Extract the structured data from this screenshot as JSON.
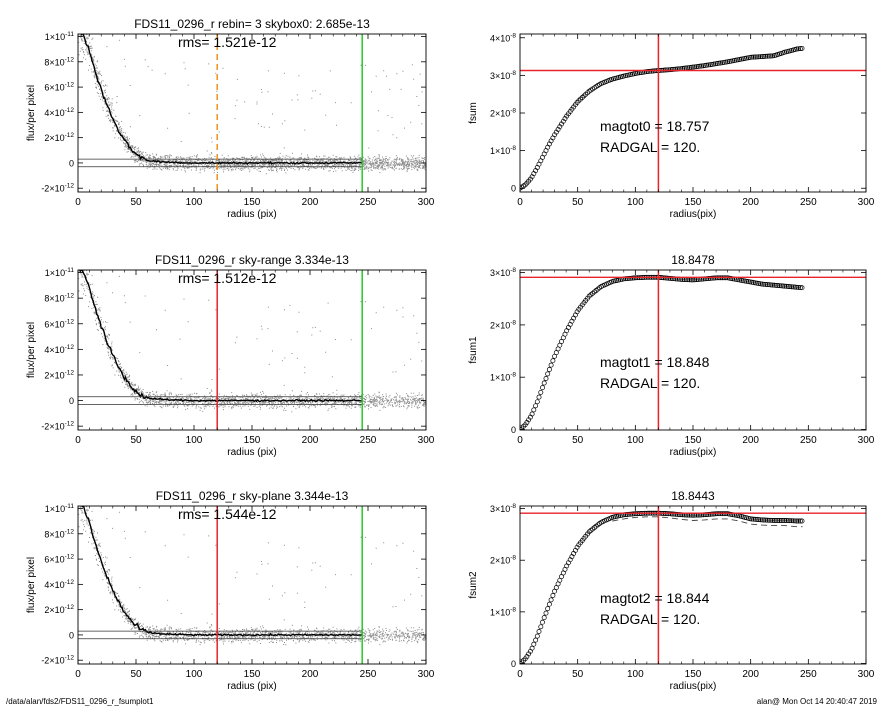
{
  "footer": {
    "left": "/data/alan/fds2/FDS11_0296_r_fsumplot1",
    "right": "alan@  Mon Oct 14 20:40:47 2019"
  },
  "colors": {
    "points": "#8c8c8c",
    "profile": "#000000",
    "red": "#e8232a",
    "green": "#22cc22",
    "orange": "#f0901e"
  },
  "chart_data": [
    {
      "id": "profile0",
      "type": "scatter",
      "title": "FDS11_0296_r rebin= 3    skybox0:  2.685e-13",
      "annotation": "rms= 1.521e-12",
      "xlabel": "radius (pix)",
      "ylabel": "flux/per pixel",
      "xlim": [
        0,
        300
      ],
      "ylim": [
        -2.3e-12,
        1.02e-11
      ],
      "xticks": [
        "0",
        "50",
        "100",
        "150",
        "200",
        "250",
        "300"
      ],
      "yticks": [
        {
          "value": 1e-11,
          "label": "1×10",
          "exp": "-11"
        },
        {
          "value": 8e-12,
          "label": "8×10",
          "exp": "-12"
        },
        {
          "value": 6e-12,
          "label": "6×10",
          "exp": "-12"
        },
        {
          "value": 4e-12,
          "label": "4×10",
          "exp": "-12"
        },
        {
          "value": 2e-12,
          "label": "2×10",
          "exp": "-12"
        },
        {
          "value": 0,
          "label": "0",
          "exp": ""
        },
        {
          "value": -2e-12,
          "label": "-2×10",
          "exp": "-12"
        }
      ],
      "series": [
        {
          "kind": "median-profile",
          "x": [
            0,
            5,
            10,
            15,
            20,
            25,
            30,
            35,
            40,
            45,
            50,
            55,
            60,
            70,
            80,
            100,
            150,
            200,
            245
          ],
          "y": [
            1.05e-11,
            1e-11,
            8.8e-12,
            7.2e-12,
            5.8e-12,
            4.6e-12,
            3.5e-12,
            2.6e-12,
            1.8e-12,
            1.2e-12,
            7e-13,
            4e-13,
            2e-13,
            1e-13,
            5e-14,
            0,
            0,
            0,
            0
          ]
        }
      ],
      "vlines": [
        {
          "x": 120,
          "color": "orange",
          "dashed": true
        },
        {
          "x": 245,
          "color": "green",
          "dashed": false
        }
      ],
      "hlines": [
        3e-13,
        -3e-13
      ]
    },
    {
      "id": "fsum0",
      "type": "scatter",
      "title": "",
      "xlabel": "radius(pix)",
      "ylabel": "fsum",
      "xlim": [
        0,
        300
      ],
      "ylim": [
        -1e-09,
        4.1e-08
      ],
      "xticks": [
        "0",
        "50",
        "100",
        "150",
        "200",
        "250",
        "300"
      ],
      "yticks": [
        {
          "value": 4e-08,
          "label": "4×10",
          "exp": "-8"
        },
        {
          "value": 3e-08,
          "label": "3×10",
          "exp": "-8"
        },
        {
          "value": 2e-08,
          "label": "2×10",
          "exp": "-8"
        },
        {
          "value": 1e-08,
          "label": "1×10",
          "exp": "-8"
        },
        {
          "value": 0,
          "label": "0",
          "exp": ""
        }
      ],
      "annotations": [
        "magtot0 =  18.757",
        "RADGAL =    120."
      ],
      "series": [
        {
          "kind": "cumulative-circles",
          "x": [
            0,
            5,
            10,
            15,
            20,
            25,
            30,
            40,
            50,
            60,
            70,
            80,
            90,
            100,
            110,
            120,
            130,
            140,
            150,
            160,
            170,
            180,
            190,
            200,
            210,
            220,
            230,
            240,
            245
          ],
          "y": [
            0,
            1e-09,
            2.8e-09,
            5.5e-09,
            8.5e-09,
            1.15e-08,
            1.42e-08,
            1.9e-08,
            2.3e-08,
            2.58e-08,
            2.78e-08,
            2.9e-08,
            2.98e-08,
            3.05e-08,
            3.1e-08,
            3.13e-08,
            3.15e-08,
            3.18e-08,
            3.22e-08,
            3.26e-08,
            3.31e-08,
            3.36e-08,
            3.42e-08,
            3.48e-08,
            3.5e-08,
            3.52e-08,
            3.62e-08,
            3.7e-08,
            3.72e-08
          ]
        }
      ],
      "vlines": [
        {
          "x": 120,
          "color": "red"
        }
      ],
      "hlines": [
        {
          "y": 3.13e-08,
          "color": "red"
        }
      ]
    },
    {
      "id": "profile1",
      "type": "scatter",
      "title": "FDS11_0296_r sky-range  3.334e-13",
      "annotation": "rms= 1.512e-12",
      "xlabel": "radius (pix)",
      "ylabel": "flux/per pixel",
      "xlim": [
        0,
        300
      ],
      "ylim": [
        -2.3e-12,
        1.02e-11
      ],
      "xticks": [
        "0",
        "50",
        "100",
        "150",
        "200",
        "250",
        "300"
      ],
      "yticks": [
        {
          "value": 1e-11,
          "label": "1×10",
          "exp": "-11"
        },
        {
          "value": 8e-12,
          "label": "8×10",
          "exp": "-12"
        },
        {
          "value": 6e-12,
          "label": "6×10",
          "exp": "-12"
        },
        {
          "value": 4e-12,
          "label": "4×10",
          "exp": "-12"
        },
        {
          "value": 2e-12,
          "label": "2×10",
          "exp": "-12"
        },
        {
          "value": 0,
          "label": "0",
          "exp": ""
        },
        {
          "value": -2e-12,
          "label": "-2×10",
          "exp": "-12"
        }
      ],
      "series": [
        {
          "kind": "median-profile",
          "x": [
            0,
            5,
            10,
            15,
            20,
            25,
            30,
            35,
            40,
            45,
            50,
            55,
            60,
            70,
            80,
            100,
            150,
            200,
            245
          ],
          "y": [
            1.05e-11,
            1e-11,
            8.8e-12,
            7.2e-12,
            5.8e-12,
            4.6e-12,
            3.5e-12,
            2.6e-12,
            1.8e-12,
            1.2e-12,
            7e-13,
            4e-13,
            2e-13,
            1e-13,
            5e-14,
            0,
            0,
            0,
            0
          ]
        }
      ],
      "vlines": [
        {
          "x": 120,
          "color": "red",
          "dashed": false
        },
        {
          "x": 245,
          "color": "green",
          "dashed": false
        }
      ],
      "hlines": [
        3e-13,
        -3e-13
      ]
    },
    {
      "id": "fsum1",
      "type": "scatter",
      "title": "18.8478",
      "xlabel": "radius(pix)",
      "ylabel": "fsum1",
      "xlim": [
        0,
        300
      ],
      "ylim": [
        -1e-10,
        3.05e-08
      ],
      "xticks": [
        "0",
        "50",
        "100",
        "150",
        "200",
        "250",
        "300"
      ],
      "yticks": [
        {
          "value": 3e-08,
          "label": "3×10",
          "exp": "-8"
        },
        {
          "value": 2e-08,
          "label": "2×10",
          "exp": "-8"
        },
        {
          "value": 1e-08,
          "label": "1×10",
          "exp": "-8"
        },
        {
          "value": 0,
          "label": "0",
          "exp": ""
        }
      ],
      "annotations": [
        "magtot1 =  18.848",
        "RADGAL =    120."
      ],
      "series": [
        {
          "kind": "cumulative-circles",
          "x": [
            0,
            5,
            10,
            15,
            20,
            25,
            30,
            40,
            50,
            60,
            70,
            80,
            90,
            100,
            110,
            120,
            130,
            140,
            150,
            160,
            170,
            180,
            190,
            200,
            210,
            220,
            230,
            240,
            245
          ],
          "y": [
            0,
            1e-09,
            2.7e-09,
            5.3e-09,
            8.3e-09,
            1.12e-08,
            1.4e-08,
            1.87e-08,
            2.27e-08,
            2.55e-08,
            2.73e-08,
            2.83e-08,
            2.88e-08,
            2.9e-08,
            2.91e-08,
            2.91e-08,
            2.89e-08,
            2.87e-08,
            2.86e-08,
            2.88e-08,
            2.9e-08,
            2.9e-08,
            2.86e-08,
            2.82e-08,
            2.78e-08,
            2.76e-08,
            2.74e-08,
            2.72e-08,
            2.71e-08
          ]
        }
      ],
      "vlines": [
        {
          "x": 120,
          "color": "red"
        }
      ],
      "hlines": [
        {
          "y": 2.91e-08,
          "color": "red"
        }
      ]
    },
    {
      "id": "profile2",
      "type": "scatter",
      "title": "FDS11_0296_r sky-plane  3.344e-13",
      "annotation": "rms= 1.544e-12",
      "xlabel": "radius (pix)",
      "ylabel": "flux/per pixel",
      "xlim": [
        0,
        300
      ],
      "ylim": [
        -2.3e-12,
        1.02e-11
      ],
      "xticks": [
        "0",
        "50",
        "100",
        "150",
        "200",
        "250",
        "300"
      ],
      "yticks": [
        {
          "value": 1e-11,
          "label": "1×10",
          "exp": "-11"
        },
        {
          "value": 8e-12,
          "label": "8×10",
          "exp": "-12"
        },
        {
          "value": 6e-12,
          "label": "6×10",
          "exp": "-12"
        },
        {
          "value": 4e-12,
          "label": "4×10",
          "exp": "-12"
        },
        {
          "value": 2e-12,
          "label": "2×10",
          "exp": "-12"
        },
        {
          "value": 0,
          "label": "0",
          "exp": ""
        },
        {
          "value": -2e-12,
          "label": "-2×10",
          "exp": "-12"
        }
      ],
      "series": [
        {
          "kind": "median-profile",
          "x": [
            0,
            5,
            10,
            15,
            20,
            25,
            30,
            35,
            40,
            45,
            50,
            55,
            60,
            70,
            80,
            100,
            150,
            200,
            245
          ],
          "y": [
            1.05e-11,
            1e-11,
            8.8e-12,
            7.2e-12,
            5.8e-12,
            4.6e-12,
            3.5e-12,
            2.6e-12,
            1.8e-12,
            1.2e-12,
            7e-13,
            4e-13,
            2e-13,
            1e-13,
            5e-14,
            0,
            0,
            0,
            0
          ]
        }
      ],
      "vlines": [
        {
          "x": 120,
          "color": "red",
          "dashed": false
        },
        {
          "x": 245,
          "color": "green",
          "dashed": false
        }
      ],
      "hlines": [
        3e-13,
        -3e-13
      ]
    },
    {
      "id": "fsum2",
      "type": "scatter",
      "title": "18.8443",
      "xlabel": "radius(pix)",
      "ylabel": "fsum2",
      "xlim": [
        0,
        300
      ],
      "ylim": [
        -1e-10,
        3.05e-08
      ],
      "xticks": [
        "0",
        "50",
        "100",
        "150",
        "200",
        "250",
        "300"
      ],
      "yticks": [
        {
          "value": 3e-08,
          "label": "3×10",
          "exp": "-8"
        },
        {
          "value": 2e-08,
          "label": "2×10",
          "exp": "-8"
        },
        {
          "value": 1e-08,
          "label": "1×10",
          "exp": "-8"
        },
        {
          "value": 0,
          "label": "0",
          "exp": ""
        }
      ],
      "annotations": [
        "magtot2 =  18.844",
        "RADGAL =    120."
      ],
      "series": [
        {
          "kind": "cumulative-circles",
          "x": [
            0,
            5,
            10,
            15,
            20,
            25,
            30,
            40,
            50,
            60,
            70,
            80,
            90,
            100,
            110,
            120,
            130,
            140,
            150,
            160,
            170,
            180,
            190,
            200,
            210,
            220,
            230,
            240,
            245
          ],
          "y": [
            0,
            1e-09,
            2.7e-09,
            5.3e-09,
            8.3e-09,
            1.12e-08,
            1.4e-08,
            1.87e-08,
            2.27e-08,
            2.55e-08,
            2.73e-08,
            2.83e-08,
            2.88e-08,
            2.9e-08,
            2.91e-08,
            2.91e-08,
            2.9e-08,
            2.88e-08,
            2.87e-08,
            2.88e-08,
            2.9e-08,
            2.9e-08,
            2.86e-08,
            2.8e-08,
            2.78e-08,
            2.77e-08,
            2.77e-08,
            2.76e-08,
            2.76e-08
          ]
        },
        {
          "kind": "dashed-lower",
          "x": [
            80,
            90,
            100,
            110,
            120,
            130,
            140,
            150,
            160,
            170,
            180,
            190,
            200,
            210,
            220,
            230,
            240,
            245
          ],
          "y": [
            2.76e-08,
            2.8e-08,
            2.83e-08,
            2.84e-08,
            2.84e-08,
            2.82e-08,
            2.79e-08,
            2.77e-08,
            2.78e-08,
            2.8e-08,
            2.8e-08,
            2.76e-08,
            2.7e-08,
            2.68e-08,
            2.67e-08,
            2.67e-08,
            2.65e-08,
            2.65e-08
          ]
        }
      ],
      "vlines": [
        {
          "x": 120,
          "color": "red"
        }
      ],
      "hlines": [
        {
          "y": 2.91e-08,
          "color": "red"
        }
      ]
    }
  ]
}
